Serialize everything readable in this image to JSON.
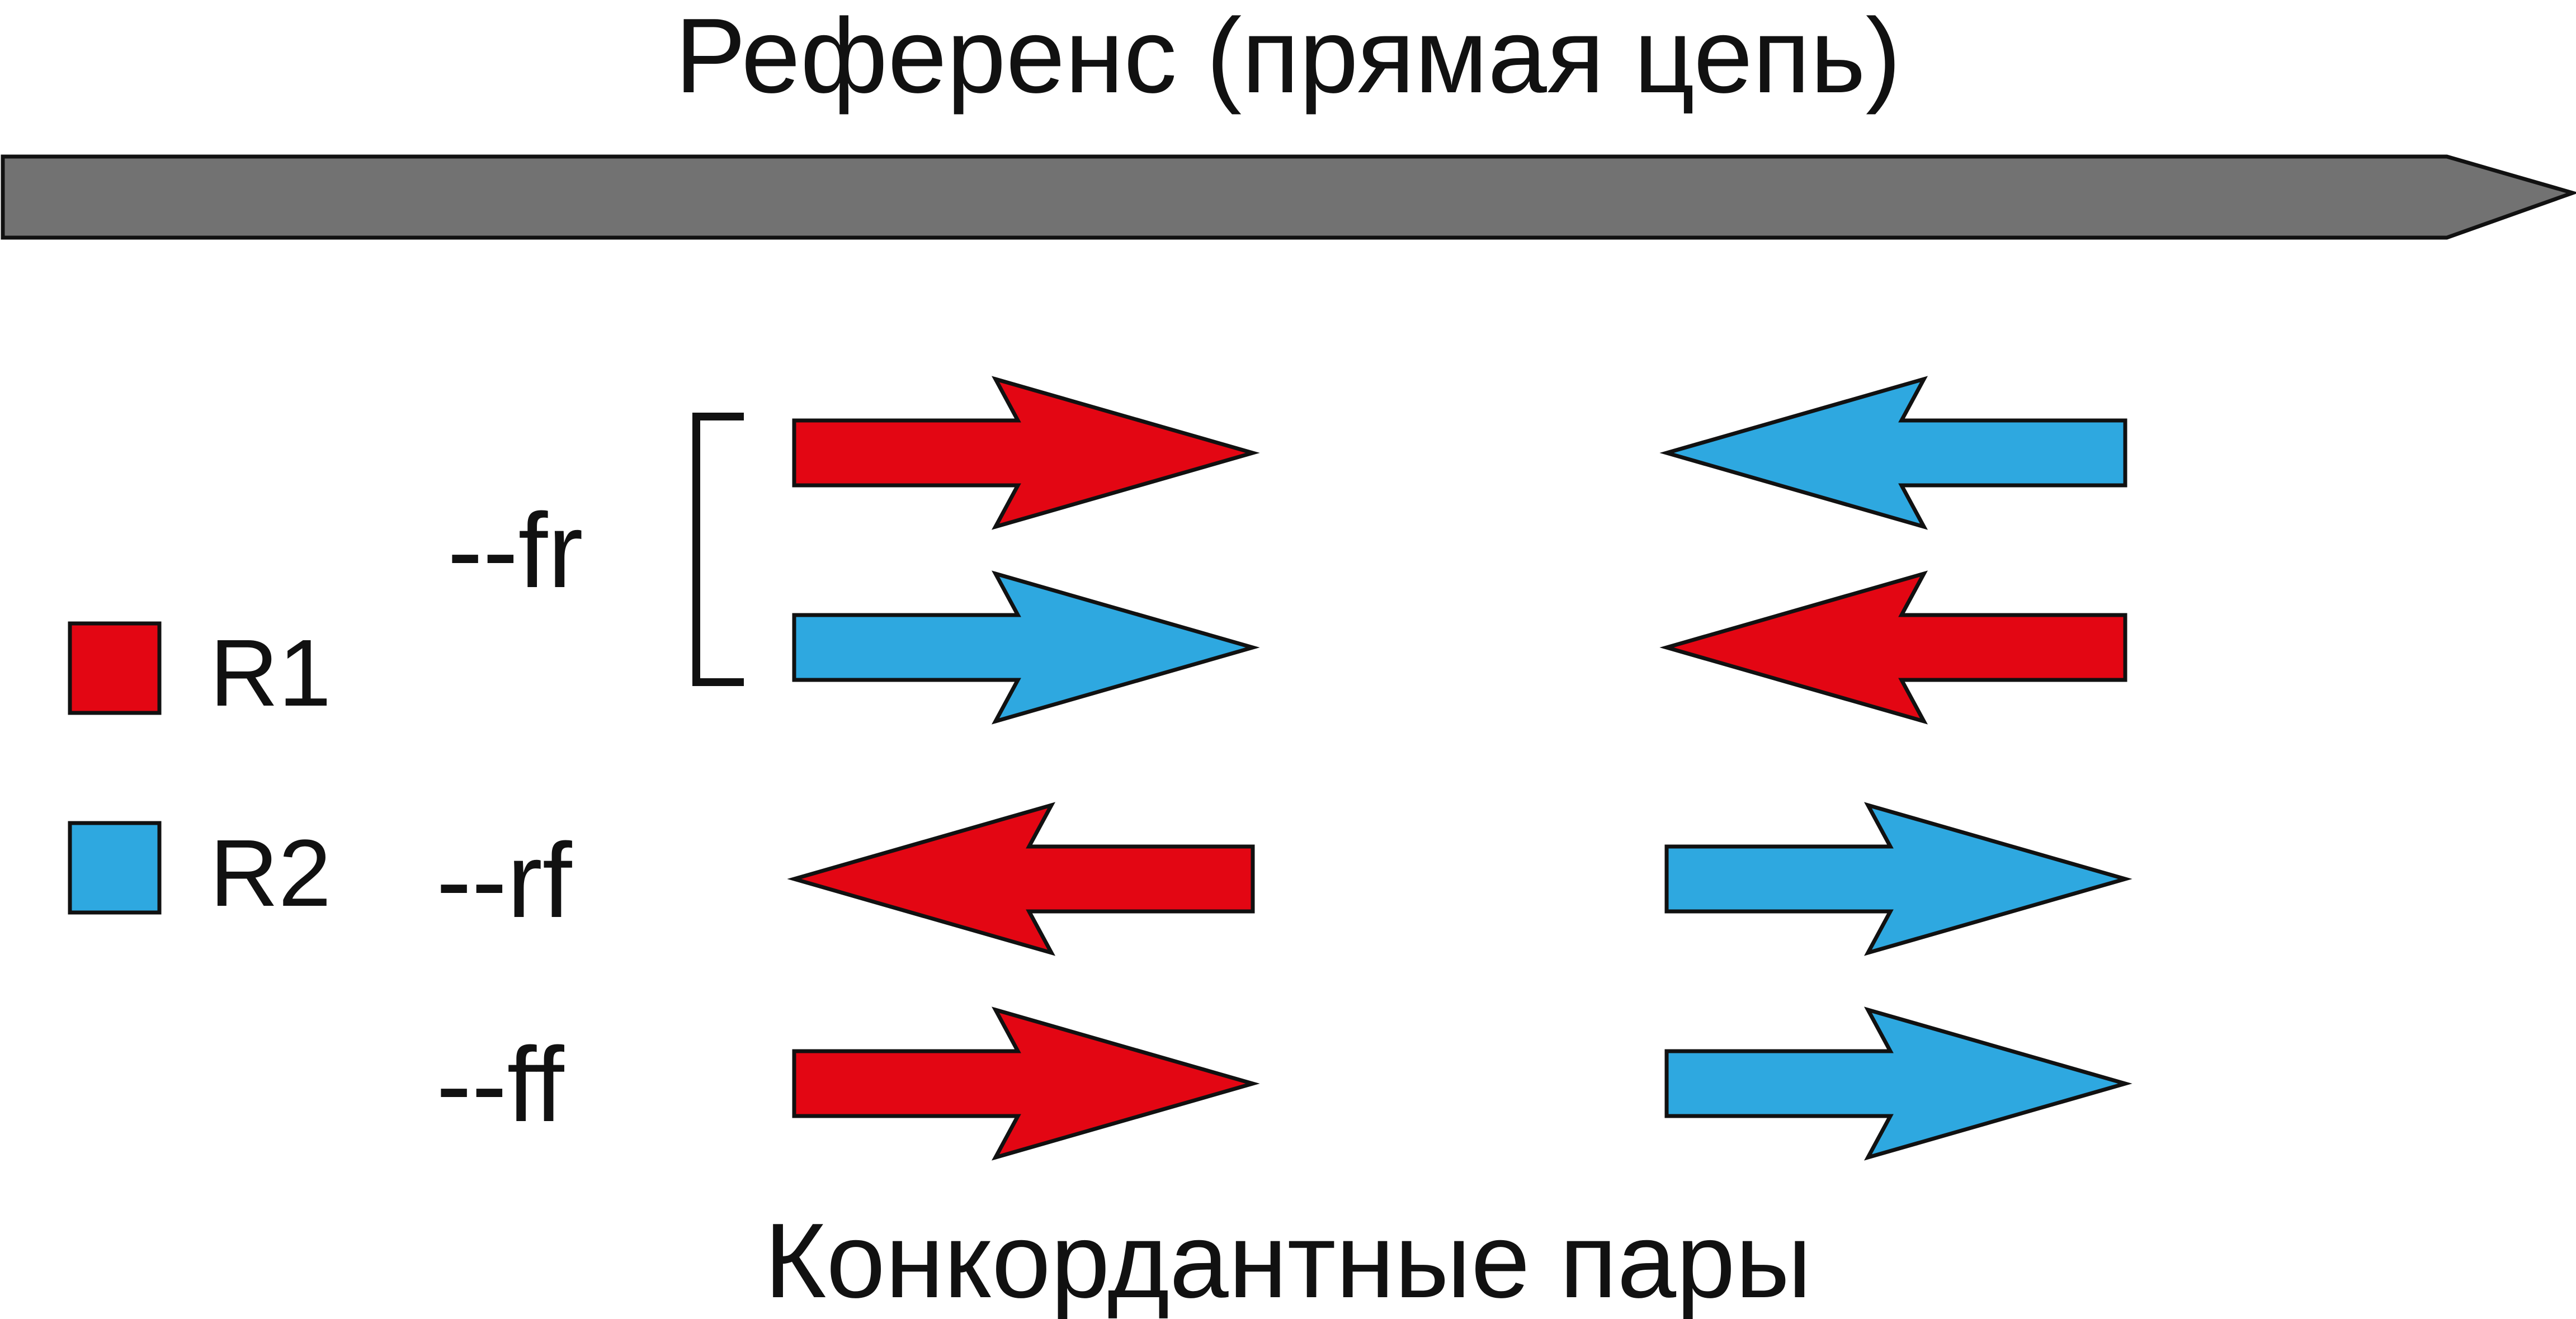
{
  "title": "Референс (прямая цепь)",
  "footer": "Конкордантные пары",
  "colors": {
    "reference": "#727272",
    "r1": "#e30613",
    "r2": "#2ea8e0",
    "outline": "#111111"
  },
  "legend": [
    {
      "key": "r1",
      "label": "R1",
      "color": "#e30613"
    },
    {
      "key": "r2",
      "label": "R2",
      "color": "#2ea8e0"
    }
  ],
  "orientations": [
    {
      "key": "fr",
      "label": "--fr",
      "bracketed": true,
      "pairs": [
        {
          "left": {
            "read": "R1",
            "direction": "right"
          },
          "right": {
            "read": "R2",
            "direction": "left"
          }
        },
        {
          "left": {
            "read": "R2",
            "direction": "right"
          },
          "right": {
            "read": "R1",
            "direction": "left"
          }
        }
      ]
    },
    {
      "key": "rf",
      "label": "--rf",
      "bracketed": false,
      "pairs": [
        {
          "left": {
            "read": "R1",
            "direction": "left"
          },
          "right": {
            "read": "R2",
            "direction": "right"
          }
        }
      ]
    },
    {
      "key": "ff",
      "label": "--ff",
      "bracketed": false,
      "pairs": [
        {
          "left": {
            "read": "R1",
            "direction": "right"
          },
          "right": {
            "read": "R2",
            "direction": "right"
          }
        }
      ]
    }
  ]
}
